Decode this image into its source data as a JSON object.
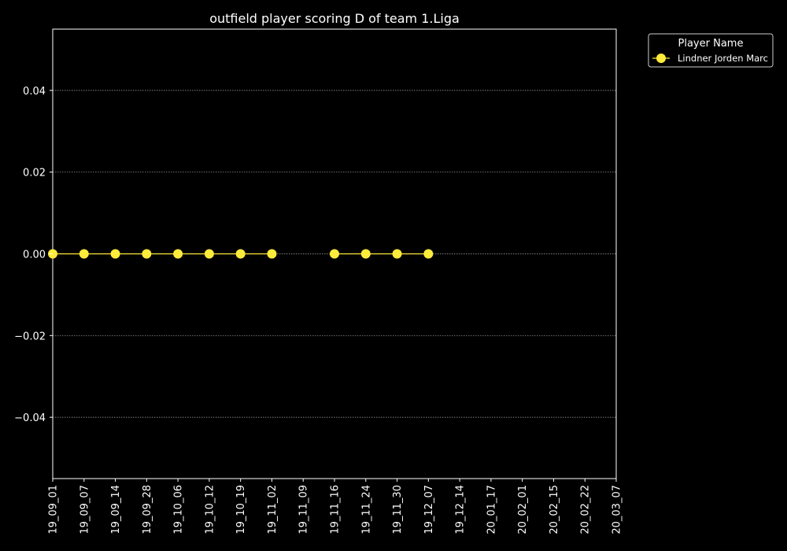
{
  "chart_data": {
    "type": "line",
    "title": "outfield player scoring D of team 1.Liga",
    "xlabel": "",
    "ylabel": "",
    "categories": [
      "19_09_01",
      "19_09_07",
      "19_09_14",
      "19_09_28",
      "19_10_06",
      "19_10_12",
      "19_10_19",
      "19_11_02",
      "19_11_09",
      "19_11_16",
      "19_11_24",
      "19_11_30",
      "19_12_07",
      "19_12_14",
      "20_01_17",
      "20_02_01",
      "20_02_15",
      "20_02_22",
      "20_03_07"
    ],
    "ylim": [
      -0.055,
      0.055
    ],
    "yticks": [
      "−0.04",
      "−0.02",
      "0.00",
      "0.02",
      "0.04"
    ],
    "ytick_values": [
      -0.04,
      -0.02,
      0.0,
      0.02,
      0.04
    ],
    "grid": "horizontal dotted",
    "legend_title": "Player Name",
    "legend_position": "outside top-right",
    "series": [
      {
        "name": "Lindner Jorden Marc",
        "color": "#ffeb3b",
        "values": [
          0,
          0,
          0,
          0,
          0,
          0,
          0,
          0,
          null,
          0,
          0,
          0,
          0,
          null,
          null,
          null,
          null,
          null,
          null
        ]
      }
    ]
  },
  "colors": {
    "background": "#000000",
    "axes": "#ffffff",
    "grid": "#aaaaaa",
    "series_line": "#ffeb3b"
  }
}
